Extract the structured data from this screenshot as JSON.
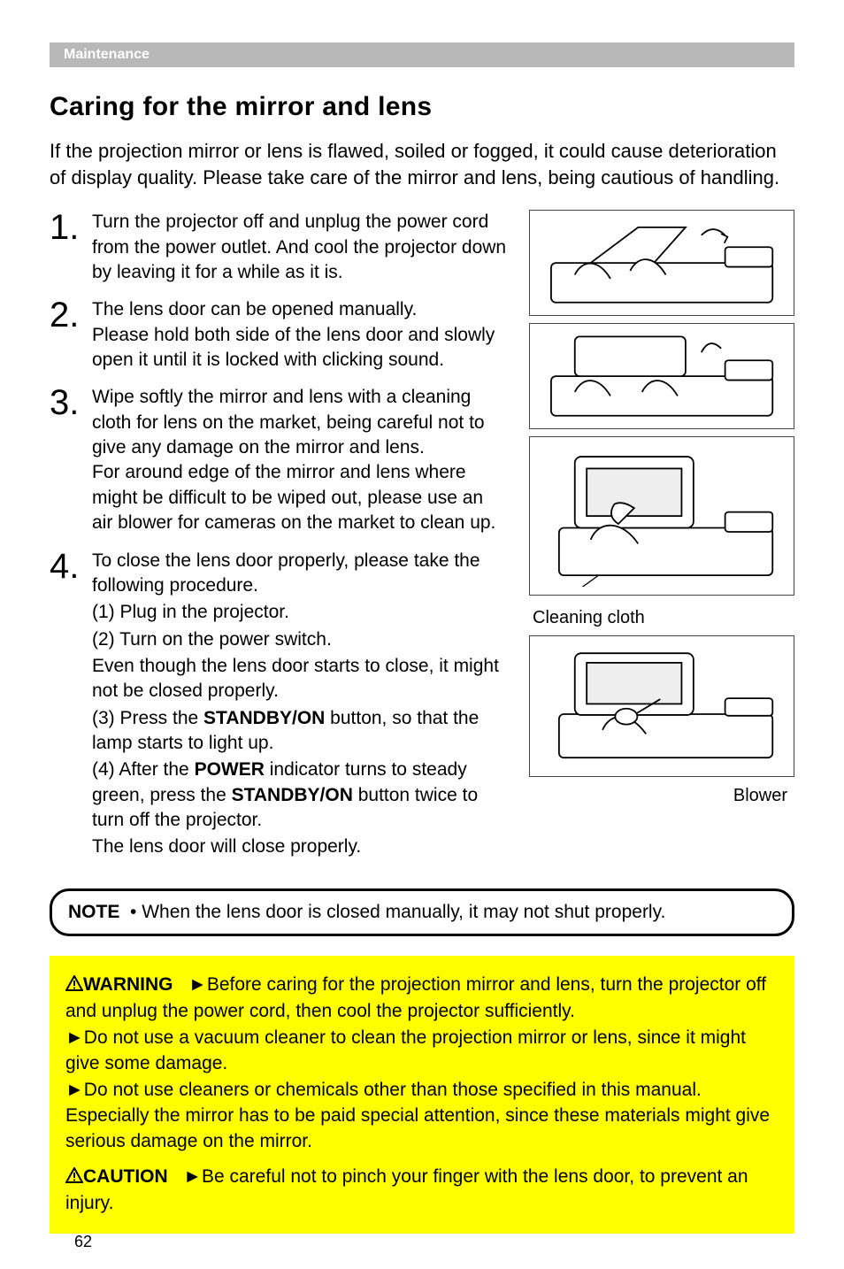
{
  "section_bar": "Maintenance",
  "title": "Caring for the mirror and lens",
  "intro": "If the projection mirror or lens is flawed, soiled or fogged, it could cause deterioration of display quality. Please take care of the mirror and lens, being cautious of handling.",
  "steps": [
    {
      "num": "1.",
      "text": "Turn the projector off and unplug the power cord from the power outlet. And cool the projector down by leaving it for a while as it is."
    },
    {
      "num": "2.",
      "text": "The lens door can be opened manually.\nPlease hold both side of the lens door and slowly open it until it is locked with clicking sound."
    },
    {
      "num": "3.",
      "text": "Wipe softly the mirror and lens with a cleaning cloth for lens on the market, being careful not to give any damage on the mirror and lens.\nFor around edge of the mirror and lens where might be difficult to be wiped out, please use an air blower for cameras on the market to clean up."
    },
    {
      "num": "4.",
      "text": "To close the lens door properly, please take the following procedure.",
      "subs": [
        "(1) Plug in the projector.",
        "(2) Turn on the power switch.",
        "Even though the lens door starts to close, it might not be closed properly.",
        "(3) Press the <b>STANDBY/ON</b> button, so that the lamp starts to light up.",
        "(4) After the <b>POWER</b> indicator turns to steady green, press the <b>STANDBY/ON</b> button twice to turn off the projector.",
        "The lens door will close properly."
      ]
    }
  ],
  "illus_label_cloth": "Cleaning cloth",
  "illus_label_blower": "Blower",
  "note_prefix": "NOTE",
  "note_text": "• When the lens door is closed manually, it may not shut properly.",
  "warning_label": "WARNING",
  "warning_items": [
    "Before caring for the projection mirror and lens, turn the projector off and unplug the power cord, then cool the projector sufficiently.",
    "Do not use a vacuum cleaner to clean the projection mirror or lens, since it might give some damage.",
    "Do not use cleaners or chemicals other than those specified in this manual. Especially the mirror has to be paid special attention, since these materials might give serious damage on the mirror."
  ],
  "caution_label": "CAUTION",
  "caution_text": "Be careful not to pinch your finger with the lens door, to prevent an injury.",
  "page_number": "62",
  "colors": {
    "section_bar_bg": "#b8b8b8",
    "section_bar_text": "#ffffff",
    "warn_bg": "#ffff00",
    "text": "#000000"
  }
}
